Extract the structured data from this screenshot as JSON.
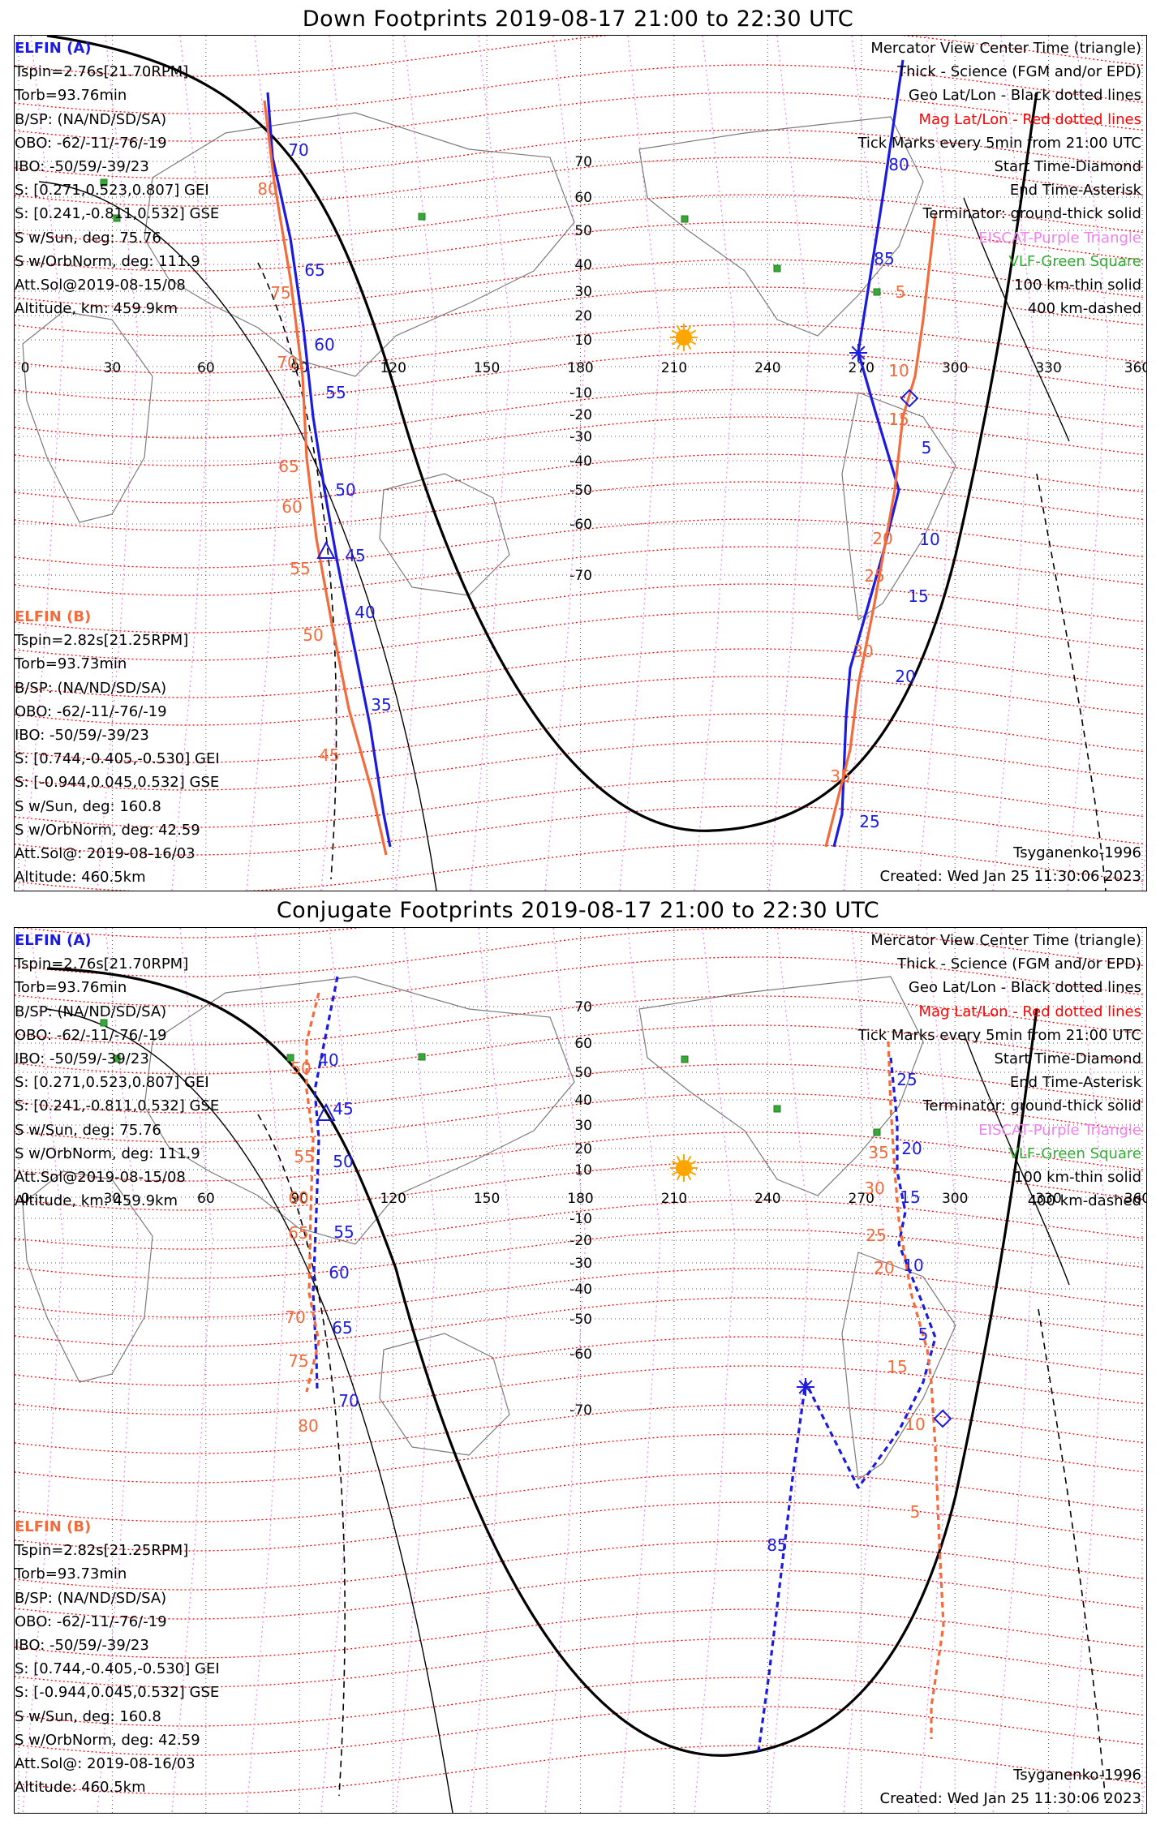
{
  "panels": [
    {
      "title": "Down Footprints 2019-08-17 21:00 to 22:30 UTC",
      "sc_a": {
        "name": "ELFIN (A)",
        "lines": [
          "Tspin=2.76s[21.70RPM]",
          "Torb=93.76min",
          "B/SP: (NA/ND/SD/SA)",
          "OBO: -62/-11/-76/-19",
          "IBO: -50/59/-39/23",
          "S: [0.271,0.523,0.807] GEI",
          "S: [0.241,-0.811,0.532] GSE",
          "S w/Sun, deg: 75.76",
          "S w/OrbNorm, deg: 111.9",
          "Att.Sol@2019-08-15/08",
          "Altitude, km: 459.9km"
        ]
      },
      "sc_b": {
        "name": "ELFIN (B)",
        "lines": [
          "Tspin=2.82s[21.25RPM]",
          "Torb=93.73min",
          "B/SP: (NA/ND/SD/SA)",
          "OBO: -62/-11/-76/-19",
          "IBO: -50/59/-39/23",
          "S: [0.744,-0.405,-0.530] GEI",
          "S: [-0.944,0.045,0.532] GSE",
          "S w/Sun, deg: 160.8",
          "S w/OrbNorm, deg: 42.59",
          "Att.Sol@: 2019-08-16/03",
          "Altitude: 460.5km"
        ]
      },
      "legend": [
        {
          "text": "Mercator View Center Time (triangle)",
          "color": "#000000"
        },
        {
          "text": "Thick - Science (FGM and/or EPD)",
          "color": "#000000"
        },
        {
          "text": "Geo Lat/Lon - Black dotted lines",
          "color": "#000000"
        },
        {
          "text": "Mag Lat/Lon - Red dotted lines",
          "color": "#ff0000"
        },
        {
          "text": "Tick Marks every 5min from 21:00 UTC",
          "color": "#000000"
        },
        {
          "text": "Start Time-Diamond",
          "color": "#000000"
        },
        {
          "text": "End Time-Asterisk",
          "color": "#000000"
        },
        {
          "text": "Terminator: ground-thick solid",
          "color": "#000000"
        },
        {
          "text": "EISCAT-Purple Triangle",
          "color": "#ee82ee"
        },
        {
          "text": "VLF-Green Square",
          "color": "#33aa33"
        },
        {
          "text": "100 km-thin solid",
          "color": "#000000"
        },
        {
          "text": "400 km-dashed",
          "color": "#000000"
        }
      ],
      "model": "Tsyganenko-1996",
      "created": "Created: Wed Jan 25 11:30:06 2023",
      "track_a_labels": [
        "70",
        "65",
        "60",
        "55",
        "50",
        "45",
        "40",
        "35",
        "5",
        "10",
        "15",
        "20",
        "25",
        "80",
        "85"
      ],
      "track_b_labels": [
        "80",
        "75",
        "70",
        "65",
        "60",
        "55",
        "50",
        "45",
        "5",
        "10",
        "15",
        "20",
        "25",
        "30",
        "35"
      ]
    },
    {
      "title": "Conjugate Footprints 2019-08-17 21:00 to 22:30 UTC",
      "sc_a": {
        "name": "ELFIN (A)",
        "lines": [
          "Tspin=2.76s[21.70RPM]",
          "Torb=93.76min",
          "B/SP: (NA/ND/SD/SA)",
          "OBO: -62/-11/-76/-19",
          "IBO: -50/59/-39/23",
          "S: [0.271,0.523,0.807] GEI",
          "S: [0.241,-0.811,0.532] GSE",
          "S w/Sun, deg: 75.76",
          "S w/OrbNorm, deg: 111.9",
          "Att.Sol@2019-08-15/08",
          "Altitude, km: 459.9km"
        ]
      },
      "sc_b": {
        "name": "ELFIN (B)",
        "lines": [
          "Tspin=2.82s[21.25RPM]",
          "Torb=93.73min",
          "B/SP: (NA/ND/SD/SA)",
          "OBO: -62/-11/-76/-19",
          "IBO: -50/59/-39/23",
          "S: [0.744,-0.405,-0.530] GEI",
          "S: [-0.944,0.045,0.532] GSE",
          "S w/Sun, deg: 160.8",
          "S w/OrbNorm, deg: 42.59",
          "Att.Sol@: 2019-08-16/03",
          "Altitude: 460.5km"
        ]
      },
      "legend": [
        {
          "text": "Mercator View Center Time (triangle)",
          "color": "#000000"
        },
        {
          "text": "Thick - Science (FGM and/or EPD)",
          "color": "#000000"
        },
        {
          "text": "Geo Lat/Lon - Black dotted lines",
          "color": "#000000"
        },
        {
          "text": "Mag Lat/Lon - Red dotted lines",
          "color": "#ff0000"
        },
        {
          "text": "Tick Marks every 5min from 21:00 UTC",
          "color": "#000000"
        },
        {
          "text": "Start Time-Diamond",
          "color": "#000000"
        },
        {
          "text": "End Time-Asterisk",
          "color": "#000000"
        },
        {
          "text": "Terminator: ground-thick solid",
          "color": "#000000"
        },
        {
          "text": "EISCAT-Purple Triangle",
          "color": "#ee82ee"
        },
        {
          "text": "VLF-Green Square",
          "color": "#33aa33"
        },
        {
          "text": "100 km-thin solid",
          "color": "#000000"
        },
        {
          "text": "400 km-dashed",
          "color": "#000000"
        }
      ],
      "model": "Tsyganenko-1996",
      "created": "Created: Wed Jan 25 11:30:06 2023",
      "track_a_labels": [
        "40",
        "45",
        "50",
        "55",
        "60",
        "65",
        "70",
        "25",
        "20",
        "15",
        "10",
        "5",
        "85"
      ],
      "track_b_labels": [
        "50",
        "55",
        "60",
        "65",
        "70",
        "75",
        "80",
        "35",
        "30",
        "25",
        "20",
        "15",
        "10",
        "5"
      ]
    }
  ],
  "lon_labels": [
    "0",
    "30",
    "60",
    "90",
    "120",
    "150",
    "180",
    "210",
    "240",
    "270",
    "300",
    "330",
    "360"
  ],
  "lat_labels_down": [
    "70",
    "60",
    "50",
    "40",
    "30",
    "20",
    "10",
    "-10",
    "-20",
    "-30",
    "-40",
    "-50",
    "-60",
    "-70"
  ],
  "lat_labels_conj": [
    "70",
    "60",
    "50",
    "40",
    "30",
    "20",
    "10",
    "-10",
    "-20",
    "-30",
    "-40",
    "-50",
    "-60",
    "-70"
  ],
  "colors": {
    "elfin_a": "#1a1ae0",
    "elfin_b": "#f36b3b",
    "mag_grid": "#ff0000",
    "eiscat": "#ee82ee",
    "vlf": "#33aa33",
    "sun": "#ffa500"
  }
}
